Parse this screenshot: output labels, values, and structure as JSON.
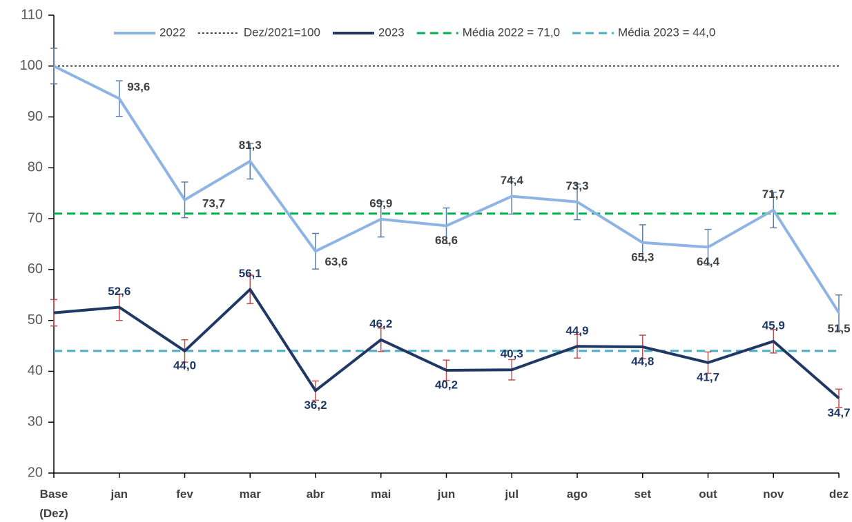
{
  "chart_data": {
    "type": "line",
    "categories": [
      "Base\n(Dez)",
      "jan",
      "fev",
      "mar",
      "abr",
      "mai",
      "jun",
      "jul",
      "ago",
      "set",
      "out",
      "nov",
      "dez"
    ],
    "ylim": [
      20,
      110
    ],
    "yticks": [
      20,
      30,
      40,
      50,
      60,
      70,
      80,
      90,
      100,
      110
    ],
    "grid": false,
    "series": [
      {
        "name": "2022",
        "color": "#8eb4e3",
        "error_color": "#5b7ea8",
        "label_color": "#404040",
        "values": [
          100,
          93.6,
          73.7,
          81.3,
          63.6,
          69.9,
          68.6,
          74.4,
          73.3,
          65.3,
          64.4,
          71.7,
          51.5
        ],
        "value_labels": [
          null,
          "93,6",
          "73,7",
          "81,3",
          "63,6",
          "69,9",
          "68,6",
          "74,4",
          "73,3",
          "65,3",
          "64,4",
          "71,7",
          "51,5"
        ],
        "errors": [
          3.5,
          3.5,
          3.5,
          3.5,
          3.5,
          3.5,
          3.5,
          3.5,
          3.5,
          3.5,
          3.5,
          3.5,
          3.5
        ]
      },
      {
        "name": "Dez/2021=100",
        "color": "#000000",
        "style": "dotted",
        "value": 100
      },
      {
        "name": "2023",
        "color": "#1f3864",
        "error_color": "#c0504d",
        "label_color": "#1f3864",
        "values": [
          51.5,
          52.6,
          44.0,
          56.1,
          36.2,
          46.2,
          40.2,
          40.3,
          44.9,
          44.8,
          41.7,
          45.9,
          34.7
        ],
        "value_labels": [
          null,
          "52,6",
          "44,0",
          "56,1",
          "36,2",
          "46,2",
          "40,2",
          "40,3",
          "44,9",
          "44,8",
          "41,7",
          "45,9",
          "34,7"
        ],
        "errors": [
          2.6,
          2.6,
          2.2,
          2.8,
          1.9,
          2.3,
          2.0,
          2.0,
          2.3,
          2.3,
          2.1,
          2.3,
          1.8
        ]
      },
      {
        "name": "Média 2022 = 71,0",
        "color": "#00b050",
        "style": "dashed",
        "value": 71.0
      },
      {
        "name": "Média 2023 = 44,0",
        "color": "#4bacc6",
        "style": "dashed",
        "value": 44.0
      }
    ]
  }
}
